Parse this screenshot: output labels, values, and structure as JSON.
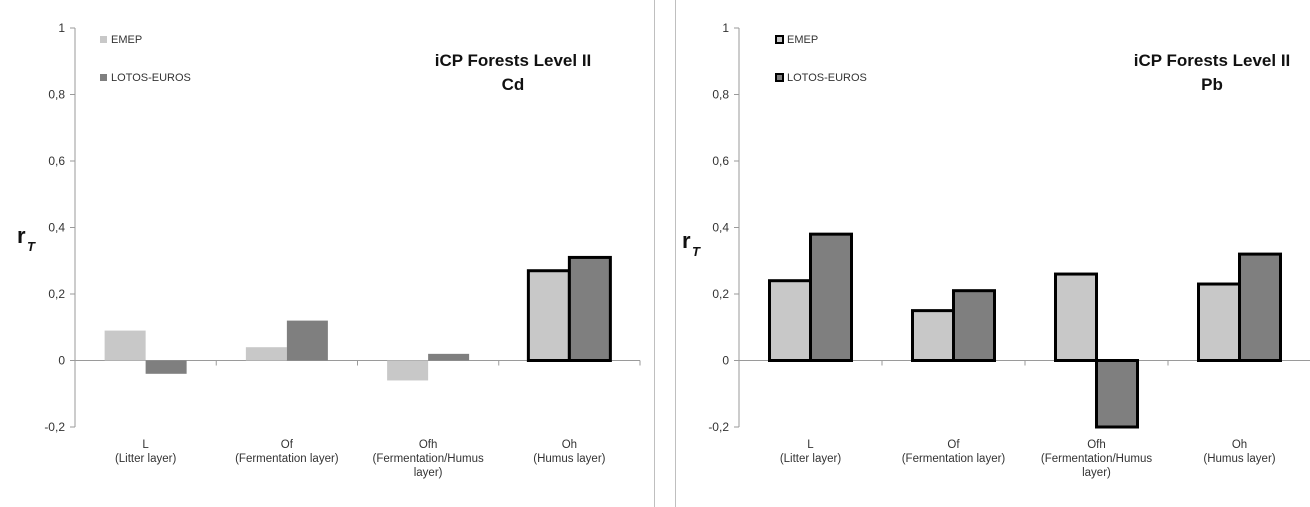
{
  "chart_data": [
    {
      "type": "bar",
      "title": "iCP Forests Level II",
      "subtitle": "Cd",
      "ylabel": "r",
      "ylabel_sub": "T",
      "ylim": [
        -0.2,
        1
      ],
      "yticks": [
        "-0,2",
        "0",
        "0,2",
        "0,4",
        "0,6",
        "0,8",
        "1"
      ],
      "categories": [
        [
          "L",
          "(Litter layer)"
        ],
        [
          "Of",
          "(Fermentation layer)"
        ],
        [
          "Ofh",
          "(Fermentation/Humus",
          "layer)"
        ],
        [
          "Oh",
          "(Humus layer)"
        ]
      ],
      "series": [
        {
          "name": "EMEP",
          "values": [
            0.09,
            0.04,
            -0.06,
            0.27
          ],
          "color": "#c8c8c8"
        },
        {
          "name": "LOTOS-EUROS",
          "values": [
            -0.04,
            0.12,
            0.02,
            0.31
          ],
          "color": "#7f7f7f"
        }
      ],
      "significant": [
        [
          false,
          false,
          false,
          true
        ],
        [
          false,
          false,
          false,
          true
        ]
      ],
      "legend_position": "top-left",
      "grid": false
    },
    {
      "type": "bar",
      "title": "iCP Forests Level II",
      "subtitle": "Pb",
      "ylabel": "r",
      "ylabel_sub": "T",
      "ylim": [
        -0.2,
        1
      ],
      "yticks": [
        "-0,2",
        "0",
        "0,2",
        "0,4",
        "0,6",
        "0,8",
        "1"
      ],
      "categories": [
        [
          "L",
          "(Litter layer)"
        ],
        [
          "Of",
          "(Fermentation layer)"
        ],
        [
          "Ofh",
          "(Fermentation/Humus",
          "layer)"
        ],
        [
          "Oh",
          "(Humus layer)"
        ]
      ],
      "series": [
        {
          "name": "EMEP",
          "values": [
            0.24,
            0.15,
            0.26,
            0.23
          ],
          "color": "#c8c8c8"
        },
        {
          "name": "LOTOS-EUROS",
          "values": [
            0.38,
            0.21,
            -0.2,
            0.32
          ],
          "color": "#7f7f7f"
        }
      ],
      "significant": [
        [
          true,
          true,
          true,
          true
        ],
        [
          true,
          true,
          true,
          true
        ]
      ],
      "legend_position": "top-left",
      "grid": false
    }
  ]
}
